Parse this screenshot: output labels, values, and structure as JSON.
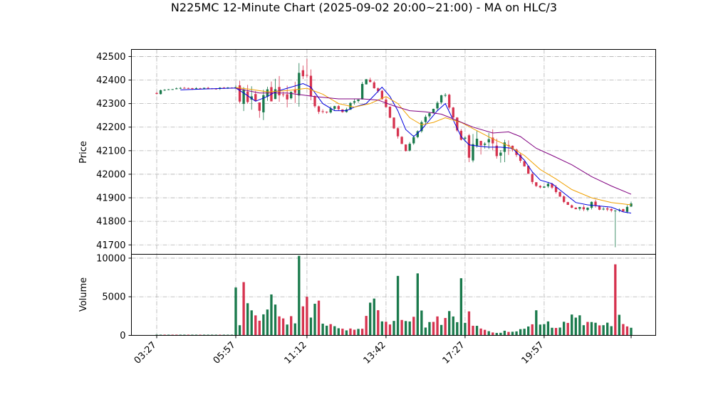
{
  "title": "N225MC 12-Minute Chart (2025-09-02 20:00~21:00) - MA on HLC/3",
  "colors": {
    "up": "#1a7a4c",
    "down": "#d6334f",
    "ma_short": "#0000dd",
    "ma_mid": "#f0a000",
    "ma_long": "#800080",
    "grid": "#b0b0b0"
  },
  "chart_data": {
    "type": "candlestick",
    "title": "N225MC 12-Minute Chart (2025-09-02 20:00~21:00) - MA on HLC/3",
    "x_tick_labels": [
      "03:27",
      "05:57",
      "11:12",
      "13:42",
      "17:27",
      "19:57"
    ],
    "x_tick_index": [
      0,
      20,
      38,
      58,
      78,
      98
    ],
    "bar_count": 121,
    "price_panel": {
      "ylabel": "Price",
      "ylim": [
        41660,
        42530
      ],
      "yticks": [
        41700,
        41800,
        41900,
        42000,
        42100,
        42200,
        42300,
        42400,
        42500
      ],
      "grid": true
    },
    "volume_panel": {
      "ylabel": "Volume",
      "ylim": [
        0,
        10500
      ],
      "yticks": [
        0,
        5000,
        10000
      ],
      "ytick_labels": [
        "0",
        "5000",
        "10000"
      ],
      "grid": true
    },
    "price_path": [
      [
        0,
        42345
      ],
      [
        1,
        42355
      ],
      [
        6,
        42363
      ],
      [
        20,
        42365
      ],
      [
        22,
        42320
      ],
      [
        25,
        42290
      ],
      [
        28,
        42330
      ],
      [
        31,
        42360
      ],
      [
        34,
        42350
      ],
      [
        36,
        42400
      ],
      [
        38,
        42390
      ],
      [
        39,
        42300
      ],
      [
        41,
        42270
      ],
      [
        43,
        42260
      ],
      [
        45,
        42290
      ],
      [
        47,
        42260
      ],
      [
        49,
        42300
      ],
      [
        51,
        42310
      ],
      [
        52,
        42380
      ],
      [
        53,
        42410
      ],
      [
        55,
        42370
      ],
      [
        57,
        42320
      ],
      [
        59,
        42240
      ],
      [
        61,
        42160
      ],
      [
        63,
        42100
      ],
      [
        65,
        42150
      ],
      [
        67,
        42220
      ],
      [
        69,
        42260
      ],
      [
        71,
        42300
      ],
      [
        72,
        42340
      ],
      [
        73,
        42330
      ],
      [
        77,
        42140
      ],
      [
        79,
        42110
      ],
      [
        81,
        42115
      ],
      [
        83,
        42110
      ],
      [
        85,
        42115
      ],
      [
        88,
        42110
      ],
      [
        90,
        42100
      ],
      [
        93,
        42030
      ],
      [
        95,
        41960
      ],
      [
        97,
        41950
      ],
      [
        99,
        41960
      ],
      [
        101,
        41920
      ],
      [
        103,
        41880
      ],
      [
        105,
        41860
      ],
      [
        107,
        41855
      ],
      [
        109,
        41850
      ],
      [
        110,
        41890
      ],
      [
        112,
        41850
      ],
      [
        116,
        41840
      ],
      [
        118,
        41850
      ],
      [
        120,
        41870
      ]
    ],
    "gaps": [
      [
        20,
        40
      ],
      [
        77,
        90
      ]
    ],
    "spikes": [
      [
        116,
        "low",
        41690
      ],
      [
        38,
        "high",
        42490
      ]
    ],
    "moving_averages": [
      {
        "key": "ma_short",
        "points": [
          [
            6,
            42358
          ],
          [
            12,
            42362
          ],
          [
            20,
            42366
          ],
          [
            22,
            42345
          ],
          [
            25,
            42310
          ],
          [
            28,
            42330
          ],
          [
            30,
            42350
          ],
          [
            33,
            42365
          ],
          [
            37,
            42385
          ],
          [
            39,
            42370
          ],
          [
            42,
            42300
          ],
          [
            45,
            42270
          ],
          [
            48,
            42270
          ],
          [
            50,
            42285
          ],
          [
            53,
            42300
          ],
          [
            55,
            42335
          ],
          [
            57,
            42370
          ],
          [
            59,
            42330
          ],
          [
            61,
            42270
          ],
          [
            63,
            42190
          ],
          [
            65,
            42160
          ],
          [
            67,
            42190
          ],
          [
            69,
            42230
          ],
          [
            71,
            42270
          ],
          [
            73,
            42300
          ],
          [
            75,
            42230
          ],
          [
            77,
            42160
          ],
          [
            79,
            42125
          ],
          [
            81,
            42120
          ],
          [
            84,
            42115
          ],
          [
            87,
            42115
          ],
          [
            90,
            42110
          ],
          [
            93,
            42060
          ],
          [
            95,
            42010
          ],
          [
            97,
            41975
          ],
          [
            100,
            41960
          ],
          [
            103,
            41920
          ],
          [
            106,
            41880
          ],
          [
            109,
            41870
          ],
          [
            112,
            41865
          ],
          [
            115,
            41860
          ],
          [
            118,
            41840
          ],
          [
            120,
            41835
          ]
        ]
      },
      {
        "key": "ma_mid",
        "points": [
          [
            20,
            42368
          ],
          [
            24,
            42360
          ],
          [
            28,
            42350
          ],
          [
            33,
            42355
          ],
          [
            38,
            42365
          ],
          [
            42,
            42340
          ],
          [
            46,
            42300
          ],
          [
            50,
            42285
          ],
          [
            54,
            42300
          ],
          [
            58,
            42330
          ],
          [
            61,
            42300
          ],
          [
            64,
            42240
          ],
          [
            67,
            42210
          ],
          [
            70,
            42220
          ],
          [
            73,
            42240
          ],
          [
            77,
            42220
          ],
          [
            81,
            42185
          ],
          [
            85,
            42150
          ],
          [
            89,
            42120
          ],
          [
            93,
            42080
          ],
          [
            97,
            42020
          ],
          [
            101,
            41980
          ],
          [
            105,
            41935
          ],
          [
            110,
            41900
          ],
          [
            115,
            41880
          ],
          [
            120,
            41870
          ]
        ]
      },
      {
        "key": "ma_long",
        "points": [
          [
            20,
            42365
          ],
          [
            26,
            42345
          ],
          [
            33,
            42345
          ],
          [
            40,
            42330
          ],
          [
            46,
            42320
          ],
          [
            52,
            42320
          ],
          [
            56,
            42315
          ],
          [
            60,
            42290
          ],
          [
            64,
            42270
          ],
          [
            68,
            42265
          ],
          [
            72,
            42255
          ],
          [
            75,
            42235
          ],
          [
            80,
            42200
          ],
          [
            85,
            42175
          ],
          [
            89,
            42180
          ],
          [
            92,
            42160
          ],
          [
            96,
            42110
          ],
          [
            100,
            42080
          ],
          [
            105,
            42040
          ],
          [
            110,
            41990
          ],
          [
            115,
            41950
          ],
          [
            120,
            41915
          ]
        ]
      }
    ],
    "volume_points": [
      [
        0,
        90
      ],
      [
        19,
        90
      ],
      [
        20,
        6000
      ],
      [
        21,
        1800
      ],
      [
        22,
        6900
      ],
      [
        23,
        4500
      ],
      [
        24,
        3000
      ],
      [
        26,
        2500
      ],
      [
        28,
        3800
      ],
      [
        29,
        5300
      ],
      [
        31,
        3000
      ],
      [
        33,
        1200
      ],
      [
        34,
        2500
      ],
      [
        35,
        1400
      ],
      [
        36,
        10300
      ],
      [
        37,
        3500
      ],
      [
        38,
        5000
      ],
      [
        39,
        2200
      ],
      [
        40,
        3200
      ],
      [
        41,
        4500
      ],
      [
        42,
        2100
      ],
      [
        44,
        1200
      ],
      [
        46,
        900
      ],
      [
        50,
        700
      ],
      [
        52,
        1200
      ],
      [
        54,
        3800
      ],
      [
        55,
        4300
      ],
      [
        57,
        1500
      ],
      [
        60,
        1800
      ],
      [
        61,
        3700
      ],
      [
        62,
        2800
      ],
      [
        63,
        1700
      ],
      [
        64,
        1400
      ],
      [
        65,
        2100
      ],
      [
        66,
        7700
      ],
      [
        67,
        3000
      ],
      [
        68,
        1200
      ],
      [
        70,
        2400
      ],
      [
        72,
        1800
      ],
      [
        74,
        3300
      ],
      [
        76,
        2300
      ],
      [
        77,
        7400
      ],
      [
        78,
        1500
      ],
      [
        79,
        3100
      ],
      [
        80,
        1300
      ],
      [
        82,
        700
      ],
      [
        85,
        400
      ],
      [
        88,
        500
      ],
      [
        91,
        600
      ],
      [
        93,
        800
      ],
      [
        95,
        1200
      ],
      [
        96,
        2800
      ],
      [
        97,
        1100
      ],
      [
        98,
        1800
      ],
      [
        100,
        1000
      ],
      [
        102,
        900
      ],
      [
        105,
        2700
      ],
      [
        106,
        2000
      ],
      [
        108,
        1400
      ],
      [
        110,
        1600
      ],
      [
        112,
        1000
      ],
      [
        115,
        1500
      ],
      [
        116,
        9000
      ],
      [
        117,
        2800
      ],
      [
        118,
        1500
      ],
      [
        120,
        900
      ]
    ],
    "volume_overrides": [
      [
        20,
        6200
      ],
      [
        22,
        6900
      ],
      [
        29,
        5300
      ],
      [
        36,
        10300
      ],
      [
        38,
        5000
      ],
      [
        41,
        4500
      ],
      [
        61,
        7700
      ],
      [
        77,
        7400
      ],
      [
        116,
        9200
      ],
      [
        105,
        2700
      ],
      [
        107,
        2600
      ]
    ]
  }
}
